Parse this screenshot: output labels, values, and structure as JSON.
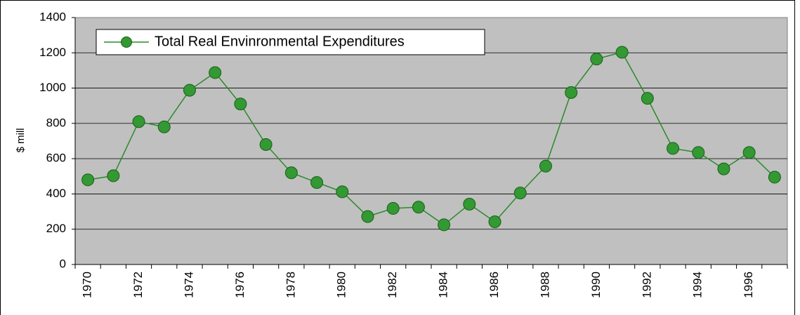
{
  "chart_data": {
    "type": "line",
    "y_label": "$ mill",
    "categories": [
      "1970",
      null,
      "1972",
      null,
      "1974",
      null,
      "1976",
      null,
      "1978",
      null,
      "1980",
      null,
      "1982",
      null,
      "1984",
      null,
      "1986",
      null,
      "1988",
      null,
      "1990",
      null,
      "1992",
      null,
      "1994",
      null,
      "1996",
      null
    ],
    "series": [
      {
        "name": "Total Real Envinronmental Expenditures",
        "color": "#2a8a2a",
        "marker_color": "#339933",
        "values": [
          480,
          503,
          810,
          780,
          988,
          1088,
          910,
          680,
          520,
          465,
          412,
          272,
          318,
          325,
          225,
          342,
          242,
          405,
          558,
          975,
          1165,
          1203,
          942,
          658,
          635,
          542,
          635,
          495
        ]
      }
    ],
    "ylim": [
      0,
      1400
    ],
    "yticks": [
      0,
      200,
      400,
      600,
      800,
      1000,
      1200,
      1400
    ],
    "grid": true,
    "legend": "top-left"
  }
}
